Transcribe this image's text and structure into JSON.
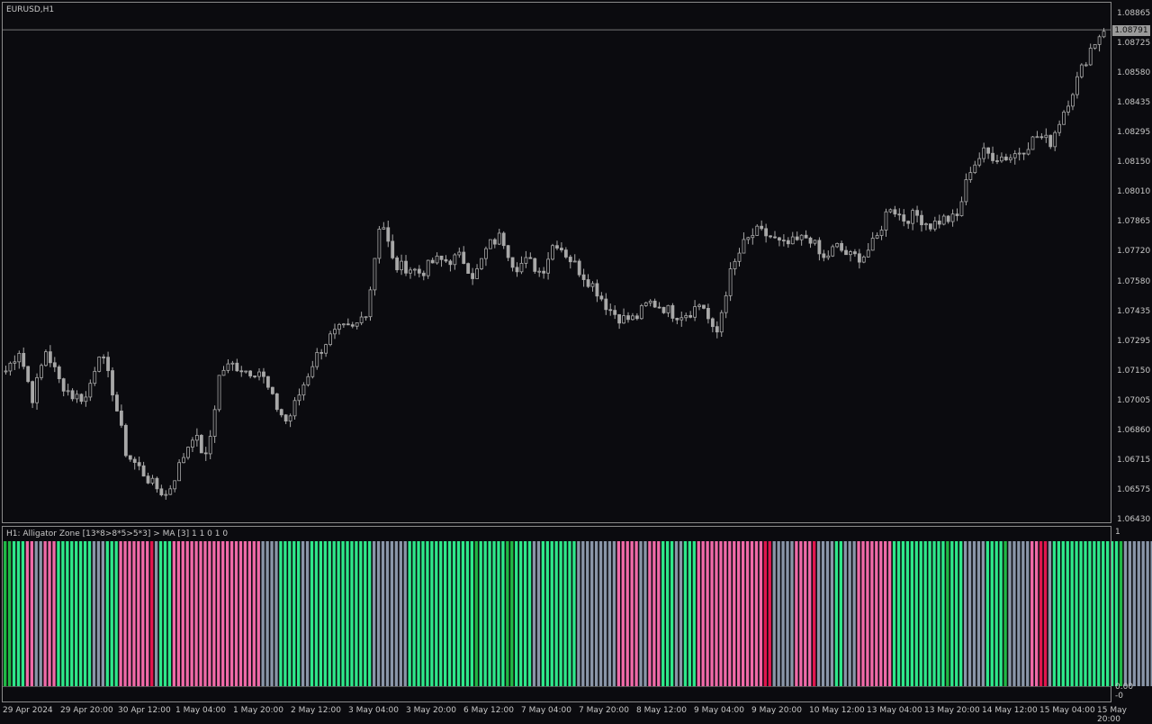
{
  "chart": {
    "symbol_label": "EURUSD,H1",
    "bid_price": "1.08791",
    "price_ticks": [
      "1.08865",
      "1.08725",
      "1.08580",
      "1.08435",
      "1.08295",
      "1.08150",
      "1.08010",
      "1.07865",
      "1.07720",
      "1.07580",
      "1.07435",
      "1.07295",
      "1.07150",
      "1.07005",
      "1.06860",
      "1.06715",
      "1.06575",
      "1.06430"
    ],
    "time_ticks": [
      "29 Apr 2024",
      "29 Apr 20:00",
      "30 Apr 12:00",
      "1 May 04:00",
      "1 May 20:00",
      "2 May 12:00",
      "3 May 04:00",
      "3 May 20:00",
      "6 May 12:00",
      "7 May 04:00",
      "7 May 20:00",
      "8 May 12:00",
      "9 May 04:00",
      "9 May 20:00",
      "10 May 12:00",
      "13 May 04:00",
      "13 May 20:00",
      "14 May 12:00",
      "15 May 04:00",
      "15 May 20:00"
    ],
    "candle_color": "#a8a8a8",
    "background": "#0b0b0f",
    "grid": false
  },
  "indicator": {
    "label": "H1: Alligator Zone [13*8>8*5>5*3] > MA [3]  1 1 0 1 0",
    "scale_top": "1",
    "scale_bottom_1": "0.00",
    "scale_bottom_2": "-0",
    "colors": {
      "green": "#2ee88a",
      "dark_green": "#20b845",
      "pink": "#f06aa8",
      "crimson": "#e0164e",
      "gray": "#8a96a8"
    }
  },
  "chart_data": {
    "type": "candlestick",
    "title": "EURUSD,H1",
    "y_range": [
      1.0643,
      1.08865
    ],
    "closes_anchor": [
      1.0715,
      1.0725,
      1.0702,
      1.0725,
      1.071,
      1.0703,
      1.0702,
      1.0725,
      1.0705,
      1.0675,
      1.0668,
      1.066,
      1.0655,
      1.067,
      1.0685,
      1.0672,
      1.0715,
      1.0718,
      1.0715,
      1.0715,
      1.07,
      1.069,
      1.0705,
      1.072,
      1.073,
      1.0735,
      1.0735,
      1.0745,
      1.079,
      1.0765,
      1.0765,
      1.0762,
      1.0768,
      1.0768,
      1.077,
      1.076,
      1.0775,
      1.078,
      1.0765,
      1.0768,
      1.0762,
      1.0778,
      1.077,
      1.0762,
      1.0755,
      1.0745,
      1.074,
      1.074,
      1.0748,
      1.0746,
      1.0742,
      1.0743,
      1.0748,
      1.073,
      1.076,
      1.0775,
      1.0782,
      1.078,
      1.0775,
      1.0777,
      1.078,
      1.0768,
      1.0775,
      1.077,
      1.077,
      1.0778,
      1.0795,
      1.0788,
      1.079,
      1.0785,
      1.0788,
      1.0788,
      1.0812,
      1.082,
      1.0818,
      1.0818,
      1.0822,
      1.0828,
      1.0825,
      1.084,
      1.0855,
      1.087,
      1.088
    ],
    "indicator_series": {
      "name": "Alligator Zone",
      "range": [
        0,
        1
      ]
    }
  }
}
